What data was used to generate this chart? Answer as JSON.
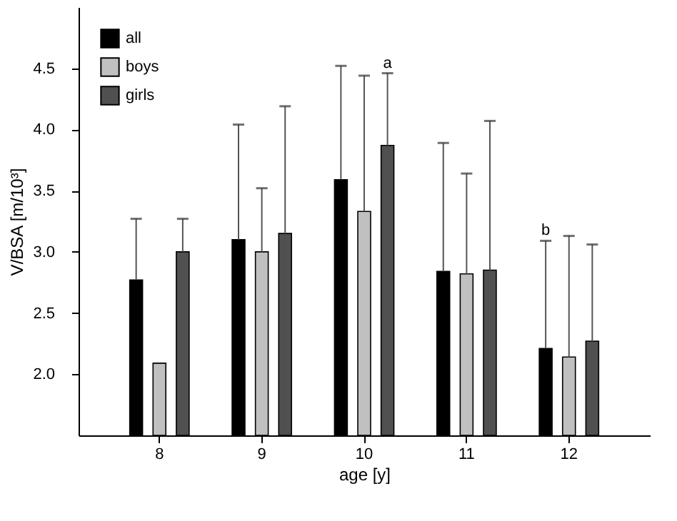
{
  "chart_data": {
    "type": "bar",
    "xlabel": "age [y]",
    "ylabel": "V/BSA [m/10³]",
    "categories": [
      "8",
      "9",
      "10",
      "11",
      "12"
    ],
    "series": [
      {
        "name": "all",
        "color": "#000000",
        "values": [
          2.77,
          3.1,
          3.59,
          2.84,
          2.21
        ],
        "errors": [
          [
            2.77,
            3.27
          ],
          [
            3.1,
            4.04
          ],
          [
            3.59,
            4.52
          ],
          [
            2.84,
            3.89
          ],
          [
            2.21,
            3.09
          ]
        ]
      },
      {
        "name": "boys",
        "color": "#c0c0c0",
        "values": [
          2.09,
          3.0,
          3.33,
          2.82,
          2.14
        ],
        "errors": [
          null,
          [
            3.0,
            3.52
          ],
          [
            3.33,
            4.44
          ],
          [
            2.82,
            3.64
          ],
          [
            2.14,
            3.13
          ]
        ]
      },
      {
        "name": "girls",
        "color": "#505050",
        "values": [
          3.0,
          3.15,
          3.87,
          2.85,
          2.27
        ],
        "errors": [
          [
            3.0,
            3.27
          ],
          [
            3.15,
            4.19
          ],
          [
            3.87,
            4.46
          ],
          [
            2.85,
            4.07
          ],
          [
            2.27,
            3.06
          ]
        ]
      }
    ],
    "ylim": [
      1.5,
      5.0
    ],
    "yticks": [
      {
        "value": 2,
        "label": "2.0"
      },
      {
        "value": 2.5,
        "label": "2.5"
      },
      {
        "value": 3,
        "label": "3.0"
      },
      {
        "value": 3.5,
        "label": "3.5"
      },
      {
        "value": 4,
        "label": "4.0"
      },
      {
        "value": 4.5,
        "label": "4.5"
      }
    ],
    "annotations": [
      {
        "text": "a",
        "x": "10",
        "y": 4.46
      },
      {
        "text": "b",
        "x": "12",
        "y": 3.09
      }
    ],
    "legend": "top left",
    "grid": false
  }
}
